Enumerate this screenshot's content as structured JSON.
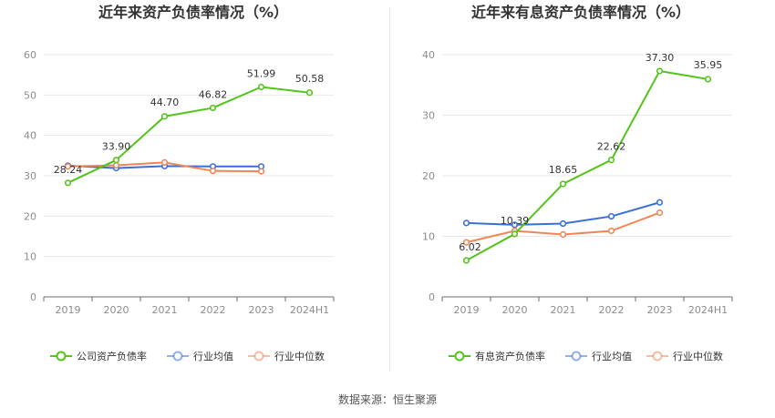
{
  "source": "数据来源：恒生聚源",
  "chart_data": [
    {
      "type": "line",
      "title": "近年来资产负债率情况（%）",
      "categories": [
        "2019",
        "2020",
        "2021",
        "2022",
        "2023",
        "2024H1"
      ],
      "ylim": [
        0,
        60
      ],
      "yticks": [
        0,
        10,
        20,
        30,
        40,
        50,
        60
      ],
      "grid": true,
      "legend_position": "bottom",
      "series": [
        {
          "name": "公司资产负债率",
          "color": "#52c41a",
          "values": [
            28.24,
            33.9,
            44.7,
            46.82,
            51.99,
            50.58
          ],
          "labels": [
            "28.24",
            "33.90",
            "44.70",
            "46.82",
            "51.99",
            "50.58"
          ]
        },
        {
          "name": "行业均值",
          "color": "#3a6fd8",
          "values": [
            32.5,
            31.9,
            32.4,
            32.3,
            32.3,
            null
          ]
        },
        {
          "name": "行业中位数",
          "color": "#f08658",
          "values": [
            32.3,
            32.6,
            33.3,
            31.2,
            31.1,
            null
          ]
        }
      ]
    },
    {
      "type": "line",
      "title": "近年来有息资产负债率情况（%）",
      "categories": [
        "2019",
        "2020",
        "2021",
        "2022",
        "2023",
        "2024H1"
      ],
      "ylim": [
        0,
        40
      ],
      "yticks": [
        0,
        10,
        20,
        30,
        40
      ],
      "grid": true,
      "legend_position": "bottom",
      "series": [
        {
          "name": "有息资产负债率",
          "color": "#52c41a",
          "values": [
            6.02,
            10.39,
            18.65,
            22.62,
            37.3,
            35.95
          ],
          "labels": [
            "6.02",
            "10.39",
            "18.65",
            "22.62",
            "37.30",
            "35.95"
          ]
        },
        {
          "name": "行业均值",
          "color": "#3a6fd8",
          "values": [
            12.2,
            11.9,
            12.1,
            13.3,
            15.6,
            null
          ]
        },
        {
          "name": "行业中位数",
          "color": "#f08658",
          "values": [
            9.0,
            10.9,
            10.3,
            10.9,
            13.9,
            null
          ]
        }
      ]
    }
  ]
}
